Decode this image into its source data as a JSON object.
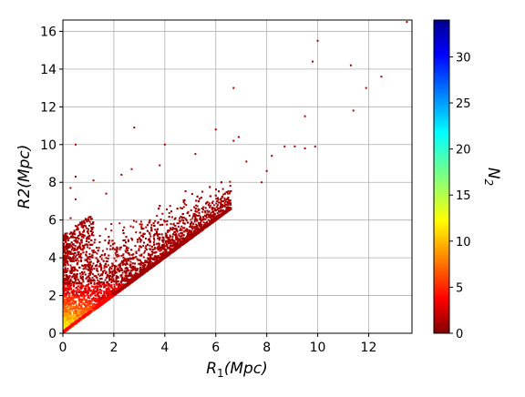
{
  "chart_data": {
    "type": "scatter",
    "title": "",
    "xlabel_main": "R",
    "xlabel_sub": "1",
    "xlabel_unit": "(Mpc)",
    "ylabel": "R2(Mpc)",
    "xlim": [
      0,
      13.7
    ],
    "ylim": [
      0,
      16.6
    ],
    "x_ticks": [
      0,
      2,
      4,
      6,
      8,
      10,
      12
    ],
    "y_ticks": [
      0,
      2,
      4,
      6,
      8,
      10,
      12,
      14,
      16
    ],
    "x_tick_labels": [
      "0",
      "2",
      "4",
      "6",
      "8",
      "10",
      "12"
    ],
    "y_tick_labels": [
      "0",
      "2",
      "4",
      "6",
      "8",
      "10",
      "12",
      "14",
      "16"
    ],
    "grid": true,
    "colormap": "jet",
    "colorbar": {
      "label_main": "N",
      "label_sub": "2",
      "range": [
        0,
        34
      ],
      "ticks": [
        0,
        5,
        10,
        15,
        20,
        25,
        30
      ],
      "tick_labels": [
        "0",
        "5",
        "10",
        "15",
        "20",
        "25",
        "30"
      ],
      "position": "right"
    },
    "scatter_note_points": [
      {
        "x": 13.5,
        "y": 16.5,
        "n": 1
      },
      {
        "x": 10.0,
        "y": 15.5,
        "n": 1
      },
      {
        "x": 9.8,
        "y": 14.4,
        "n": 1
      },
      {
        "x": 11.3,
        "y": 14.2,
        "n": 1
      },
      {
        "x": 12.5,
        "y": 13.6,
        "n": 1
      },
      {
        "x": 6.7,
        "y": 13.0,
        "n": 1
      },
      {
        "x": 11.9,
        "y": 13.0,
        "n": 1
      },
      {
        "x": 11.4,
        "y": 11.8,
        "n": 1
      },
      {
        "x": 9.5,
        "y": 11.5,
        "n": 1
      },
      {
        "x": 2.8,
        "y": 10.9,
        "n": 1
      },
      {
        "x": 6.0,
        "y": 10.8,
        "n": 1
      },
      {
        "x": 6.9,
        "y": 10.4,
        "n": 1
      },
      {
        "x": 6.7,
        "y": 10.2,
        "n": 1
      },
      {
        "x": 0.5,
        "y": 10.0,
        "n": 1
      },
      {
        "x": 4.0,
        "y": 10.0,
        "n": 1
      },
      {
        "x": 9.9,
        "y": 9.9,
        "n": 1
      },
      {
        "x": 9.5,
        "y": 9.8,
        "n": 1
      },
      {
        "x": 9.1,
        "y": 9.9,
        "n": 1
      },
      {
        "x": 8.7,
        "y": 9.9,
        "n": 1
      },
      {
        "x": 5.2,
        "y": 9.5,
        "n": 1
      },
      {
        "x": 8.2,
        "y": 9.4,
        "n": 1
      },
      {
        "x": 7.2,
        "y": 9.1,
        "n": 1
      },
      {
        "x": 3.8,
        "y": 8.9,
        "n": 1
      },
      {
        "x": 2.7,
        "y": 8.7,
        "n": 1
      },
      {
        "x": 8.0,
        "y": 8.6,
        "n": 1
      },
      {
        "x": 0.5,
        "y": 8.3,
        "n": 1
      },
      {
        "x": 2.3,
        "y": 8.4,
        "n": 1
      },
      {
        "x": 1.2,
        "y": 8.1,
        "n": 1
      },
      {
        "x": 7.8,
        "y": 8.0,
        "n": 1
      },
      {
        "x": 0.3,
        "y": 7.7,
        "n": 1
      },
      {
        "x": 1.7,
        "y": 7.4,
        "n": 1
      },
      {
        "x": 0.5,
        "y": 7.1,
        "n": 1
      },
      {
        "x": 0.3,
        "y": 6.1,
        "n": 1
      }
    ],
    "density_summary": {
      "note": "Dense cloud of points bounded below by the line R2 = R1; high N2 (yellow/orange) near the origin, red for R2 < 2, dark red elsewhere",
      "max_n_observed": 12
    }
  }
}
